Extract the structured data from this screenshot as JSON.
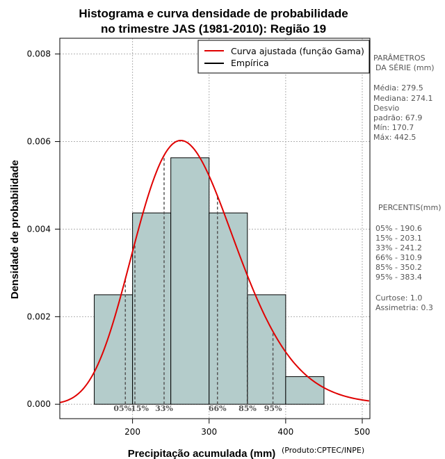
{
  "chart_data": {
    "type": "bar",
    "title_line1": "Histograma e curva densidade de probabilidade",
    "title_line2": "no trimestre JAS (1981-2010): Região 19",
    "xlabel": "Precipitação acumulada (mm)",
    "ylabel": "Densidade de probabilidade",
    "credit": "(Produto:CPTEC/INPE)",
    "xlim": [
      105,
      510
    ],
    "ylim": [
      -0.00033,
      0.00836
    ],
    "x_ticks": [
      200,
      300,
      400,
      500
    ],
    "y_ticks": [
      "0.000",
      "0.002",
      "0.004",
      "0.006",
      "0.008"
    ],
    "grid": true,
    "bins": [
      {
        "from": 150,
        "to": 200,
        "density": 0.0025
      },
      {
        "from": 200,
        "to": 250,
        "density": 0.00437
      },
      {
        "from": 250,
        "to": 300,
        "density": 0.00563
      },
      {
        "from": 300,
        "to": 350,
        "density": 0.00437
      },
      {
        "from": 350,
        "to": 400,
        "density": 0.0025
      },
      {
        "from": 400,
        "to": 450,
        "density": 0.00063
      }
    ],
    "gamma_fit": {
      "name": "Curva ajustada (função Gama)",
      "color": "#e00000",
      "mean": 279.5,
      "sd": 67.9
    },
    "empirical": {
      "name": "Empírica",
      "color": "#000000"
    },
    "legend_position": "top-right",
    "percentiles": [
      {
        "label": "05%",
        "value": 190.6
      },
      {
        "label": "15%",
        "value": 203.1
      },
      {
        "label": "33%",
        "value": 241.2
      },
      {
        "label": "66%",
        "value": 310.9
      },
      {
        "label": "85%",
        "value": 350.2
      },
      {
        "label": "95%",
        "value": 383.4
      }
    ]
  },
  "stats_panel": {
    "params_title_1": "PARÂMETROS",
    "params_title_2": "DA SÉRIE (mm)",
    "media": "Média:  279.5",
    "mediana": "Mediana:  274.1",
    "desvio_1": "Desvio",
    "desvio_2": "padrão:  67.9",
    "min": "Mín:  170.7",
    "max": "Máx:  442.5",
    "percentis_title": "PERCENTIS(mm)",
    "p05": "05% -   190.6",
    "p15": "15% -   203.1",
    "p33": "33% -   241.2",
    "p66": "66% -   310.9",
    "p85": "85% -   350.2",
    "p95": "95% -   383.4",
    "curtose": "Curtose:  1.0",
    "assimetria": "Assimetria:  0.3"
  },
  "colors": {
    "bar_fill": "#b4cccb",
    "curve": "#e00000",
    "grid": "#b0b0b0"
  }
}
